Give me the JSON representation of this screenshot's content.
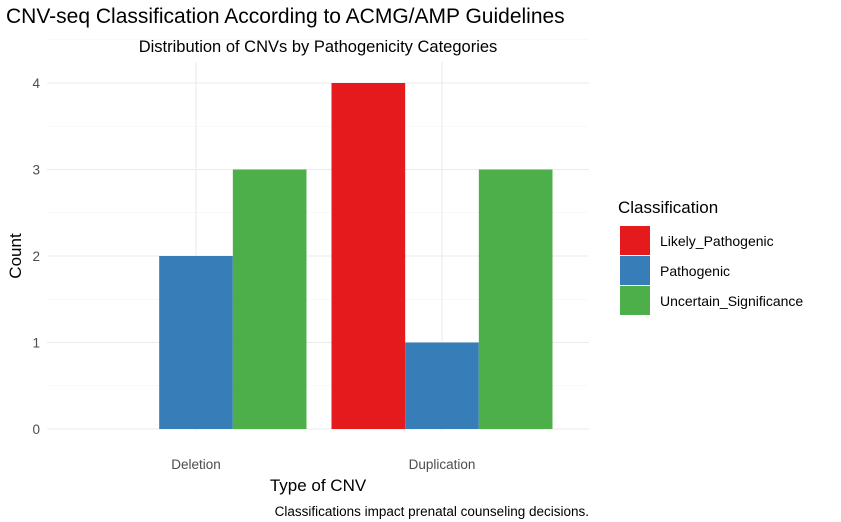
{
  "chart_data": {
    "type": "bar",
    "title": "CNV-seq Classification According to ACMG/AMP Guidelines",
    "subtitle": "Distribution of CNVs by Pathogenicity Categories",
    "xlabel": "Type of CNV",
    "ylabel": "Count",
    "caption": "Classifications impact prenatal counseling decisions.",
    "categories": [
      "Deletion",
      "Duplication"
    ],
    "ylim": [
      0,
      4.2
    ],
    "yticks": [
      0,
      1,
      2,
      3,
      4
    ],
    "grid": true,
    "legend": {
      "title": "Classification",
      "placement": "right"
    },
    "series": [
      {
        "name": "Likely_Pathogenic",
        "color": "#e41a1c",
        "values": [
          null,
          4
        ]
      },
      {
        "name": "Pathogenic",
        "color": "#377eb8",
        "values": [
          2,
          1
        ]
      },
      {
        "name": "Uncertain_Significance",
        "color": "#4daf4a",
        "values": [
          3,
          3
        ]
      }
    ]
  }
}
